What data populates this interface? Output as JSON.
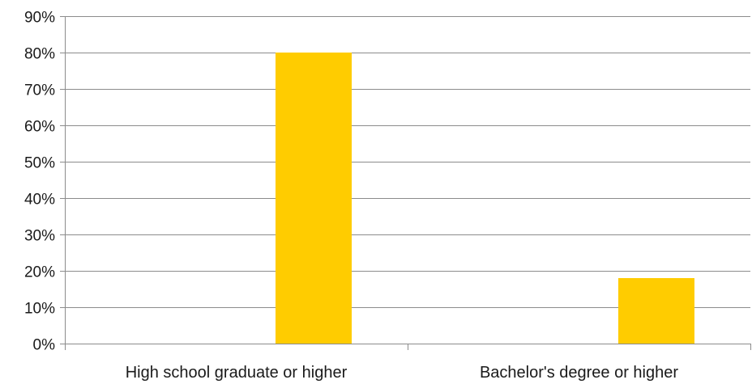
{
  "chart_data": {
    "type": "bar",
    "title": "",
    "xlabel": "",
    "ylabel": "",
    "categories": [
      "High school graduate or higher",
      "Bachelor's degree or higher"
    ],
    "series": [
      {
        "values": [
          0.8,
          0.18
        ]
      }
    ],
    "ylim": [
      0,
      0.9
    ],
    "y_ticks": [
      0,
      0.1,
      0.2,
      0.3,
      0.4,
      0.5,
      0.6,
      0.7,
      0.8,
      0.9
    ],
    "y_tick_labels": [
      "0%",
      "10%",
      "20%",
      "30%",
      "40%",
      "50%",
      "60%",
      "70%",
      "80%",
      "90%"
    ],
    "grid": true,
    "legend": "none",
    "colors": {
      "bar": "#FFCC00",
      "grid": "#8c8c8c",
      "axis": "#8c8c8c",
      "text": "#1a1a1a"
    }
  }
}
